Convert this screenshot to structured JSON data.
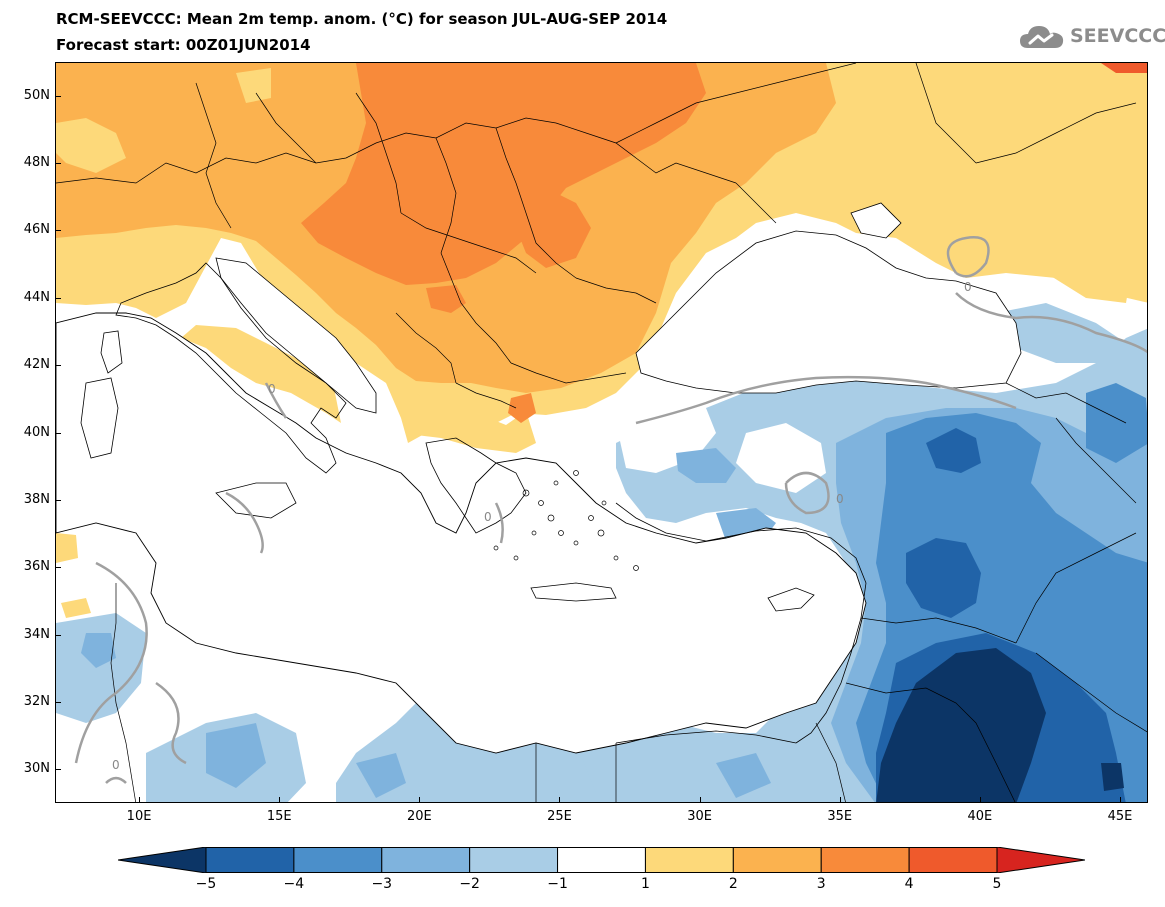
{
  "header": {
    "title_line1": "RCM-SEEVCCC: Mean 2m temp. anom. (°C) for season JUL-AUG-SEP 2014",
    "title_line2": "Forecast start: 00Z01JUN2014"
  },
  "logo": {
    "text": "SEEVCCC",
    "icon": "cloud-logo-icon",
    "color": "#8c8c8c"
  },
  "map": {
    "lat_labels": [
      "50N",
      "48N",
      "46N",
      "44N",
      "42N",
      "40N",
      "38N",
      "36N",
      "34N",
      "32N",
      "30N"
    ],
    "lon_labels": [
      "10E",
      "15E",
      "20E",
      "25E",
      "30E",
      "35E",
      "40E",
      "45E"
    ],
    "lat_range": [
      29,
      51
    ],
    "lon_range": [
      7,
      46
    ],
    "contour_labels": [
      "0",
      "0",
      "0",
      "0",
      "0"
    ]
  },
  "colorbar": {
    "labels": [
      "−5",
      "−4",
      "−3",
      "−2",
      "−1",
      "1",
      "2",
      "3",
      "4",
      "5"
    ],
    "colors": [
      "#0c3566",
      "#2163a8",
      "#4b8fca",
      "#7fb3dd",
      "#a9cde6",
      "#ffffff",
      "#fdd97a",
      "#fbb24f",
      "#f88a3a",
      "#ef5a2c",
      "#d7241f"
    ]
  }
}
